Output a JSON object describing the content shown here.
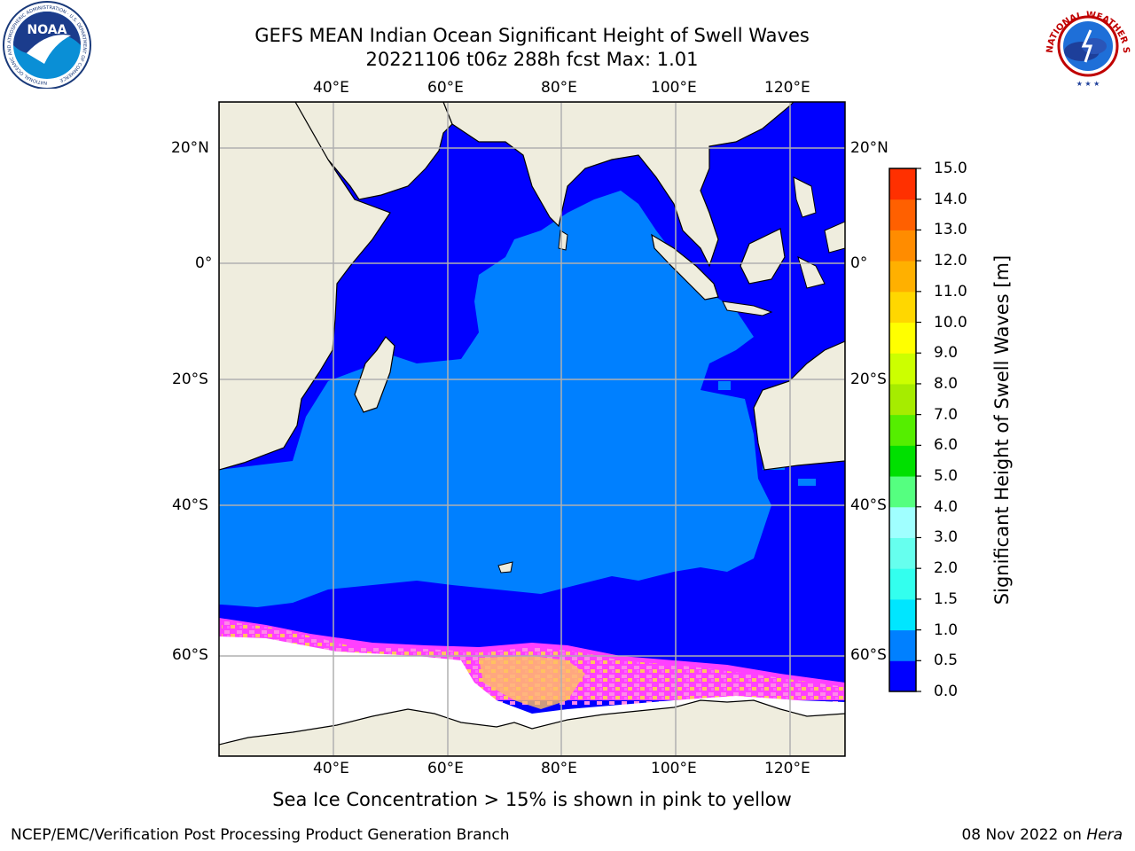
{
  "title_line1": "GEFS MEAN Indian Ocean Significant Height of Swell Waves",
  "title_line2": "20221106 t06z 288h fcst   Max: 1.01",
  "lon_labels": [
    "40°E",
    "60°E",
    "80°E",
    "100°E",
    "120°E"
  ],
  "lat_labels": [
    "20°N",
    "0°",
    "20°S",
    "40°S",
    "60°S"
  ],
  "colorbar": {
    "label": "Significant Height of Swell Waves [m]",
    "ticks": [
      "0.0",
      "0.5",
      "1.0",
      "1.5",
      "2.0",
      "3.0",
      "4.0",
      "5.0",
      "6.0",
      "7.0",
      "8.0",
      "9.0",
      "10.0",
      "11.0",
      "12.0",
      "13.0",
      "14.0",
      "15.0"
    ],
    "colors": [
      "#0000ff",
      "#0080ff",
      "#00e6ff",
      "#33ffee",
      "#66ffee",
      "#a0ffff",
      "#55ff80",
      "#00e000",
      "#55ee00",
      "#a6ec00",
      "#ccff00",
      "#ffff00",
      "#ffd700",
      "#ffb000",
      "#ff8c00",
      "#ff6000",
      "#ff3000",
      "#ff0000"
    ]
  },
  "note": "Sea Ice Concentration > 15% is shown in pink to yellow",
  "footer_left": "NCEP/EMC/Verification Post Processing Product Generation Branch",
  "footer_date": "08 Nov 2022 on",
  "footer_host": "Hera",
  "logos": {
    "noaa_text": "NOAA",
    "noaa_ring": "NATIONAL OCEANIC AND ATMOSPHERIC ADMINISTRATION · U.S. DEPARTMENT OF COMMERCE",
    "nws_ring": "NATIONAL WEATHER SERVICE"
  }
}
